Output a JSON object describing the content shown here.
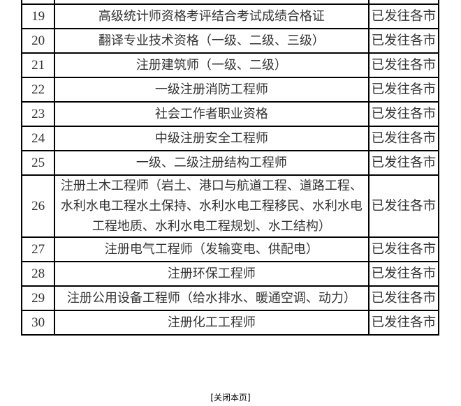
{
  "rows": [
    {
      "no": "19",
      "name": "高级统计师资格考评结合考试成绩合格证",
      "status": "已发往各市"
    },
    {
      "no": "20",
      "name": "翻译专业技术资格（一级、二级、三级）",
      "status": "已发往各市"
    },
    {
      "no": "21",
      "name": "注册建筑师（一级、二级）",
      "status": "已发往各市"
    },
    {
      "no": "22",
      "name": "一级注册消防工程师",
      "status": "已发往各市"
    },
    {
      "no": "23",
      "name": "社会工作者职业资格",
      "status": "已发往各市"
    },
    {
      "no": "24",
      "name": "中级注册安全工程师",
      "status": "已发往各市"
    },
    {
      "no": "25",
      "name": "一级、二级注册结构工程师",
      "status": "已发往各市"
    },
    {
      "no": "26",
      "name": "注册土木工程师（岩土、港口与航道工程、道路工程、水利水电工程水土保持、水利水电工程移民、水利水电工程地质、水利水电工程规划、水工结构）",
      "status": "已发往各市"
    },
    {
      "no": "27",
      "name": "注册电气工程师（发输变电、供配电）",
      "status": "已发往各市"
    },
    {
      "no": "28",
      "name": "注册环保工程师",
      "status": "已发往各市"
    },
    {
      "no": "29",
      "name": "注册公用设备工程师（给水排水、暖通空调、动力）",
      "status": "已发往各市"
    },
    {
      "no": "30",
      "name": "注册化工工程师",
      "status": "已发往各市"
    }
  ],
  "close_link": "[关闭本页]"
}
